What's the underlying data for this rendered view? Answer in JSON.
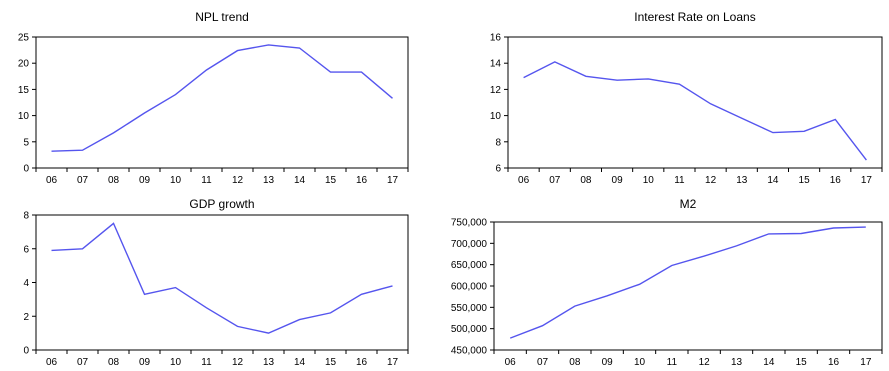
{
  "chart_data": [
    {
      "type": "line",
      "title": "NPL trend",
      "categories": [
        "06",
        "07",
        "08",
        "09",
        "10",
        "11",
        "12",
        "13",
        "14",
        "15",
        "16",
        "17"
      ],
      "values": [
        3.2,
        3.4,
        6.7,
        10.5,
        14.0,
        18.7,
        22.4,
        23.5,
        22.9,
        18.3,
        18.3,
        13.3
      ],
      "ylim": [
        0,
        25
      ],
      "yticks": [
        "0",
        "5",
        "10",
        "15",
        "20",
        "25"
      ],
      "ytick_values": [
        0,
        5,
        10,
        15,
        20,
        25
      ],
      "line_color": "#5555ee",
      "grid": false
    },
    {
      "type": "line",
      "title": "Interest Rate on Loans",
      "categories": [
        "06",
        "07",
        "08",
        "09",
        "10",
        "11",
        "12",
        "13",
        "14",
        "15",
        "16",
        "17"
      ],
      "values": [
        12.9,
        14.1,
        13.0,
        12.7,
        12.8,
        12.4,
        10.9,
        9.8,
        8.7,
        8.8,
        9.7,
        6.6
      ],
      "ylim": [
        6,
        16
      ],
      "yticks": [
        "6",
        "8",
        "10",
        "12",
        "14",
        "16"
      ],
      "ytick_values": [
        6,
        8,
        10,
        12,
        14,
        16
      ],
      "line_color": "#5555ee",
      "grid": false
    },
    {
      "type": "line",
      "title": "GDP growth",
      "categories": [
        "06",
        "07",
        "08",
        "09",
        "10",
        "11",
        "12",
        "13",
        "14",
        "15",
        "16",
        "17"
      ],
      "values": [
        5.9,
        6.0,
        7.5,
        3.3,
        3.7,
        2.5,
        1.4,
        1.0,
        1.8,
        2.2,
        3.3,
        3.8
      ],
      "ylim": [
        0,
        8
      ],
      "yticks": [
        "0",
        "2",
        "4",
        "6",
        "8"
      ],
      "ytick_values": [
        0,
        2,
        4,
        6,
        8
      ],
      "line_color": "#5555ee",
      "grid": false
    },
    {
      "type": "line",
      "title": "M2",
      "categories": [
        "06",
        "07",
        "08",
        "09",
        "10",
        "11",
        "12",
        "13",
        "14",
        "15",
        "16",
        "17"
      ],
      "values": [
        478000,
        507000,
        553000,
        577000,
        604000,
        648000,
        670000,
        694000,
        722000,
        723000,
        736000,
        738000
      ],
      "ylim": [
        450000,
        750000
      ],
      "yticks": [
        "450,000",
        "500,000",
        "550,000",
        "600,000",
        "650,000",
        "700,000",
        "750,000"
      ],
      "ytick_values": [
        450000,
        500000,
        550000,
        600000,
        650000,
        700000,
        750000
      ],
      "line_color": "#5555ee",
      "grid": false
    }
  ]
}
